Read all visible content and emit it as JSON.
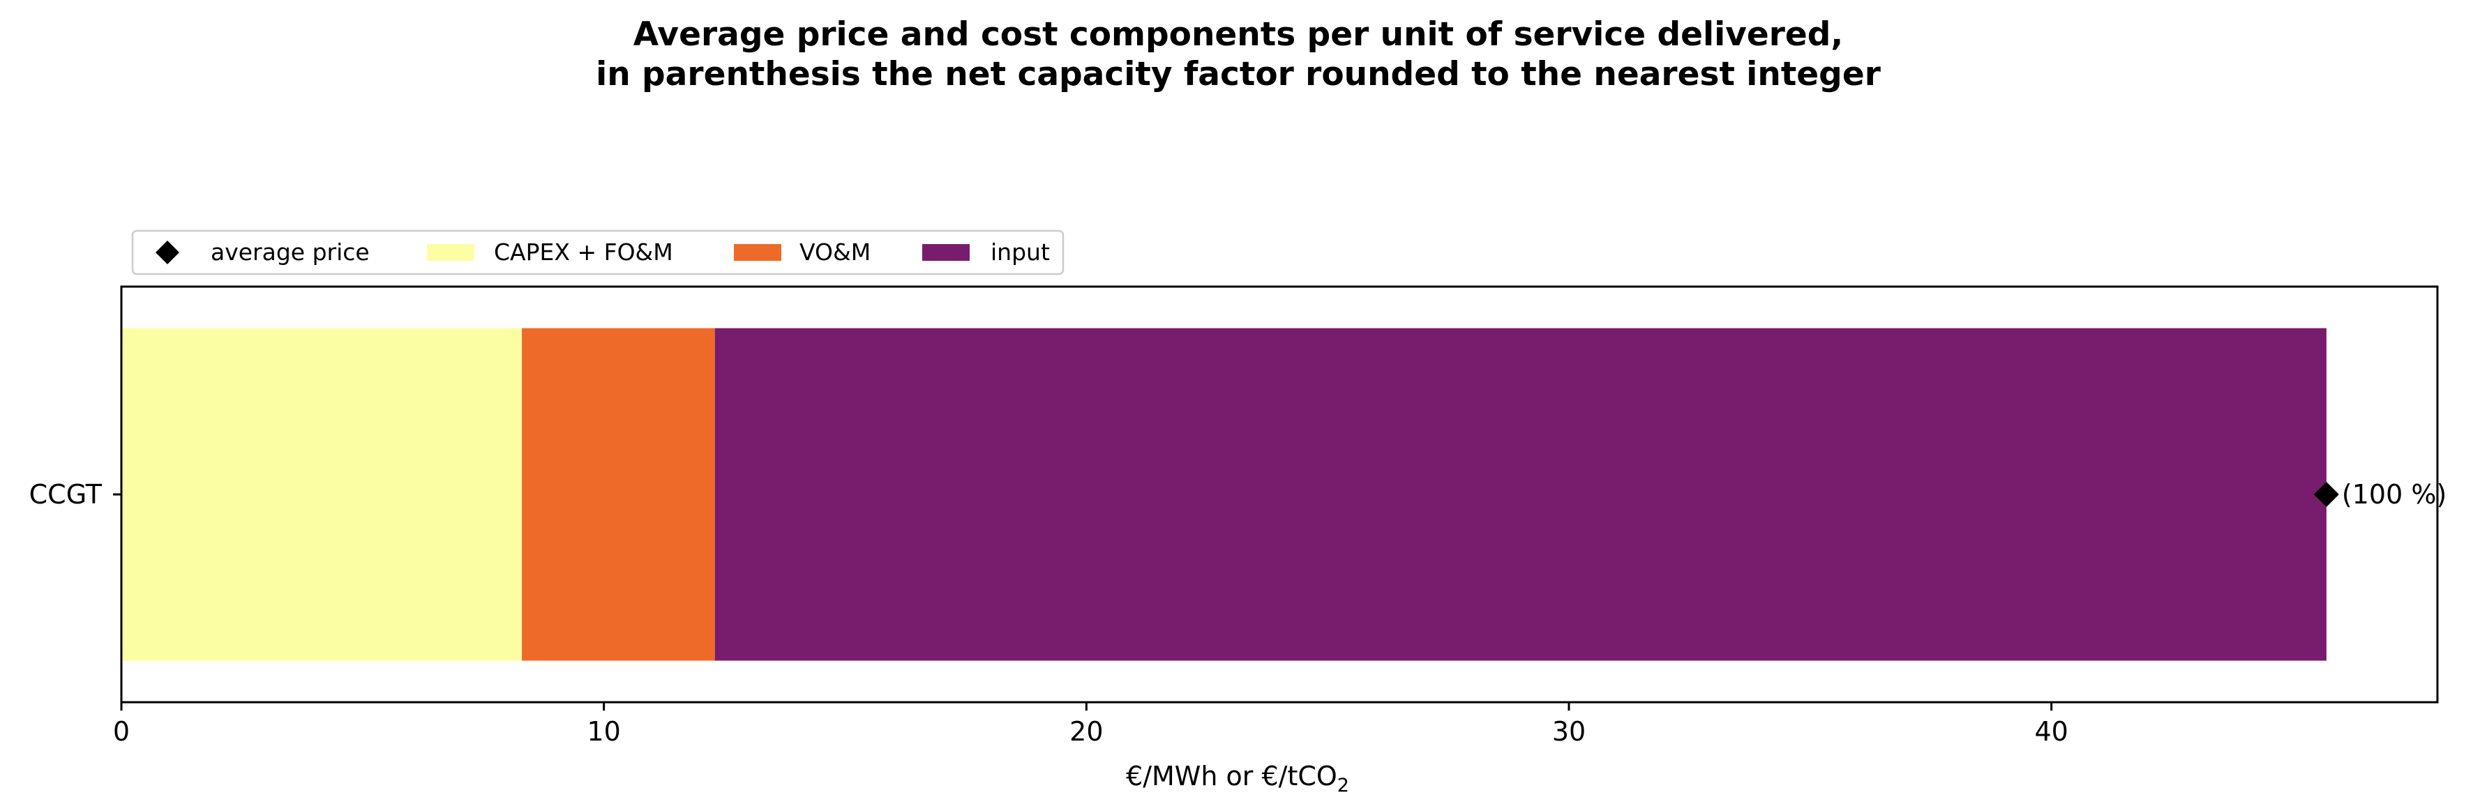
{
  "chart_data": {
    "type": "bar",
    "orientation": "horizontal",
    "stacked": true,
    "title_line1": "Average price and cost components per unit of service delivered,",
    "title_line2": "in parenthesis the net capacity factor rounded to the nearest integer",
    "xlabel_main": "€/MWh or €/tCO",
    "xlabel_sub": "2",
    "ylabel": "",
    "xlim": [
      0,
      48
    ],
    "xticks": [
      0,
      10,
      20,
      30,
      40
    ],
    "categories": [
      "CCGT"
    ],
    "series": [
      {
        "name": "CAPEX + FO&M",
        "color": "#fcfea4",
        "values": [
          8.3
        ]
      },
      {
        "name": "VO&M",
        "color": "#ee6a28",
        "values": [
          4.0
        ]
      },
      {
        "name": "input",
        "color": "#781c6d",
        "values": [
          33.4
        ]
      }
    ],
    "average_price": {
      "name": "average price",
      "color": "#000000",
      "values": [
        45.7
      ]
    },
    "annotations": [
      "(100 %)"
    ],
    "legend_position": "above-left",
    "grid": false
  }
}
